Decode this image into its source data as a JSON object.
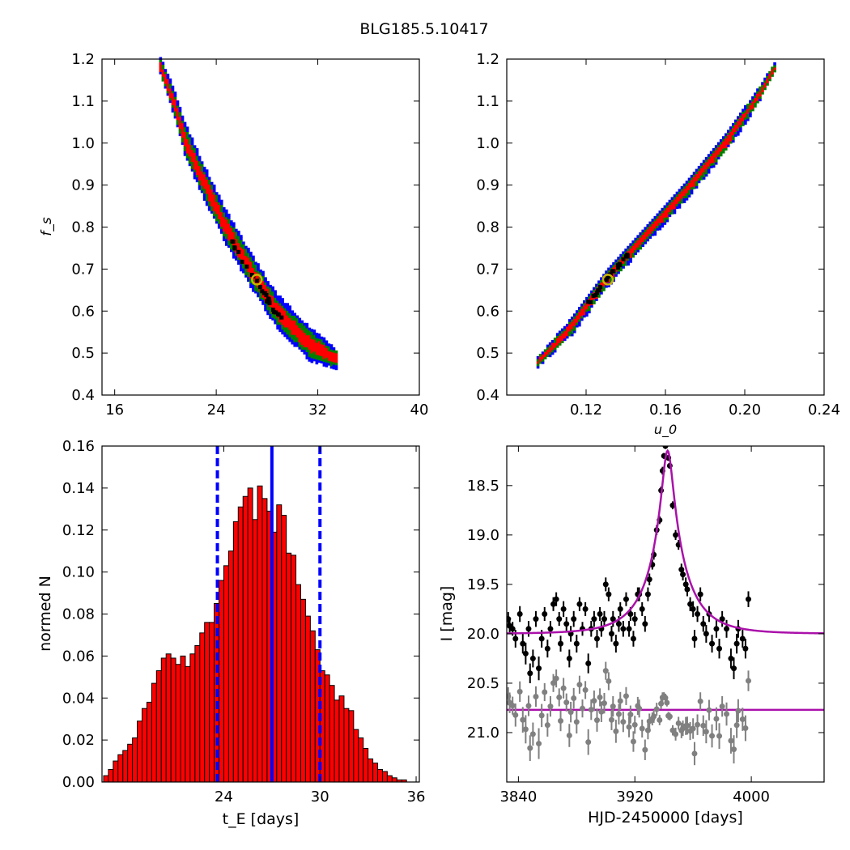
{
  "figure": {
    "title": "BLG185.5.10417"
  },
  "chart_data": [
    {
      "id": "fs-vs-te",
      "type": "heatmap",
      "xlabel": "",
      "ylabel": "f_s",
      "xlim": [
        15,
        40
      ],
      "ylim": [
        0.4,
        1.2
      ],
      "xticks": [
        16,
        24,
        32,
        40
      ],
      "yticks": [
        0.4,
        0.5,
        0.6,
        0.7,
        0.8,
        0.9,
        1.0,
        1.1,
        1.2
      ],
      "ytick_labels": [
        "0.4",
        "0.5",
        "0.6",
        "0.7",
        "0.8",
        "0.9",
        "1.0",
        "1.1",
        "1.2"
      ],
      "regions": [
        {
          "level": "outer",
          "color": "#0000ff"
        },
        {
          "level": "middle",
          "color": "#008000"
        },
        {
          "level": "inner",
          "color": "#ff0000"
        },
        {
          "level": "best",
          "color": "#000000"
        }
      ],
      "ridge": [
        [
          19.5,
          1.18
        ],
        [
          20.5,
          1.1
        ],
        [
          21.5,
          1.0
        ],
        [
          23,
          0.9
        ],
        [
          24.6,
          0.8
        ],
        [
          26.5,
          0.7
        ],
        [
          28.6,
          0.6
        ],
        [
          31.2,
          0.52
        ],
        [
          33.5,
          0.48
        ]
      ],
      "best_fit": {
        "x": 27.2,
        "y": 0.675,
        "color": "#c8b400"
      }
    },
    {
      "id": "fs-vs-u0",
      "type": "heatmap",
      "xlabel": "u_0",
      "ylabel": "",
      "xlim": [
        0.08,
        0.24
      ],
      "ylim": [
        0.4,
        1.2
      ],
      "xticks": [
        0.12,
        0.16,
        0.2,
        0.24
      ],
      "xtick_labels": [
        "0.12",
        "0.16",
        "0.20",
        "0.24"
      ],
      "yticks": [
        0.4,
        0.5,
        0.6,
        0.7,
        0.8,
        0.9,
        1.0,
        1.1,
        1.2
      ],
      "ytick_labels": [
        "0.4",
        "0.5",
        "0.6",
        "0.7",
        "0.8",
        "0.9",
        "1.0",
        "1.1",
        "1.2"
      ],
      "regions": [
        {
          "level": "outer",
          "color": "#0000ff"
        },
        {
          "level": "middle",
          "color": "#008000"
        },
        {
          "level": "inner",
          "color": "#ff0000"
        },
        {
          "level": "best",
          "color": "#000000"
        }
      ],
      "ridge": [
        [
          0.095,
          0.475
        ],
        [
          0.112,
          0.56
        ],
        [
          0.13,
          0.675
        ],
        [
          0.15,
          0.78
        ],
        [
          0.17,
          0.885
        ],
        [
          0.19,
          1.0
        ],
        [
          0.205,
          1.1
        ],
        [
          0.215,
          1.18
        ]
      ],
      "best_fit": {
        "x": 0.131,
        "y": 0.675,
        "color": "#c8b400"
      }
    },
    {
      "id": "te-histogram",
      "type": "bar",
      "xlabel": "t_E [days]",
      "ylabel": "normed N",
      "xlim": [
        16.4,
        36.2
      ],
      "ylim": [
        0,
        0.16
      ],
      "xticks": [
        24,
        30,
        36
      ],
      "yticks": [
        0.0,
        0.02,
        0.04,
        0.06,
        0.08,
        0.1,
        0.12,
        0.14,
        0.16
      ],
      "ytick_labels": [
        "0.00",
        "0.02",
        "0.04",
        "0.06",
        "0.08",
        "0.10",
        "0.12",
        "0.14",
        "0.16"
      ],
      "bin_start": 16.5,
      "bin_width": 0.3,
      "values": [
        0.003,
        0.006,
        0.01,
        0.013,
        0.015,
        0.018,
        0.021,
        0.029,
        0.035,
        0.038,
        0.047,
        0.053,
        0.059,
        0.061,
        0.059,
        0.056,
        0.06,
        0.055,
        0.061,
        0.065,
        0.071,
        0.076,
        0.076,
        0.085,
        0.096,
        0.103,
        0.11,
        0.124,
        0.131,
        0.136,
        0.14,
        0.125,
        0.141,
        0.135,
        0.129,
        0.119,
        0.132,
        0.127,
        0.109,
        0.108,
        0.094,
        0.087,
        0.079,
        0.072,
        0.063,
        0.053,
        0.051,
        0.046,
        0.039,
        0.041,
        0.035,
        0.034,
        0.025,
        0.021,
        0.016,
        0.011,
        0.009,
        0.006,
        0.005,
        0.003,
        0.002,
        0.001,
        0.001
      ],
      "bar_color": "#ff0000",
      "median": 27.0,
      "lower": 23.6,
      "upper": 30.0,
      "line_color": "#0000ff"
    },
    {
      "id": "light-curve",
      "type": "scatter",
      "xlabel": "HJD-2450000 [days]",
      "ylabel": "I [mag]",
      "xlim": [
        3832,
        4050
      ],
      "ylim": [
        21.5,
        18.1
      ],
      "y_inverted": true,
      "xticks": [
        3840,
        3920,
        4000
      ],
      "yticks": [
        18.5,
        19.0,
        19.5,
        20.0,
        20.5,
        21.0
      ],
      "ytick_labels": [
        "18.5",
        "19.0",
        "19.5",
        "20.0",
        "20.5",
        "21.0"
      ],
      "model": {
        "t0": 3942.5,
        "tE": 27.2,
        "u0": 0.131,
        "fs": 0.675,
        "I_base": 20.0,
        "color": "#aa11aa"
      },
      "residual_baseline": {
        "I": 20.77,
        "color": "#aa11aa"
      },
      "data_color": "#000000",
      "residual_color": "#808080",
      "points": [
        [
          3833,
          19.85,
          0.07
        ],
        [
          3834,
          19.92,
          0.08
        ],
        [
          3836,
          19.95,
          0.07
        ],
        [
          3838,
          20.05,
          0.09
        ],
        [
          3841,
          19.8,
          0.08
        ],
        [
          3843,
          20.1,
          0.1
        ],
        [
          3845,
          20.2,
          0.11
        ],
        [
          3847,
          19.95,
          0.08
        ],
        [
          3848,
          20.4,
          0.1
        ],
        [
          3850,
          20.25,
          0.09
        ],
        [
          3852,
          19.85,
          0.08
        ],
        [
          3854,
          20.35,
          0.12
        ],
        [
          3856,
          20.05,
          0.09
        ],
        [
          3858,
          19.8,
          0.07
        ],
        [
          3860,
          20.15,
          0.09
        ],
        [
          3862,
          19.95,
          0.08
        ],
        [
          3864,
          19.7,
          0.07
        ],
        [
          3866,
          19.65,
          0.07
        ],
        [
          3868,
          19.85,
          0.07
        ],
        [
          3869,
          20.1,
          0.08
        ],
        [
          3871,
          19.75,
          0.08
        ],
        [
          3873,
          19.9,
          0.07
        ],
        [
          3875,
          20.25,
          0.09
        ],
        [
          3876,
          20.0,
          0.08
        ],
        [
          3878,
          19.85,
          0.08
        ],
        [
          3880,
          20.1,
          0.09
        ],
        [
          3882,
          19.7,
          0.07
        ],
        [
          3884,
          19.95,
          0.07
        ],
        [
          3886,
          19.75,
          0.07
        ],
        [
          3888,
          20.3,
          0.1
        ],
        [
          3890,
          19.95,
          0.08
        ],
        [
          3892,
          19.85,
          0.08
        ],
        [
          3894,
          20.05,
          0.09
        ],
        [
          3896,
          19.8,
          0.07
        ],
        [
          3897,
          19.95,
          0.08
        ],
        [
          3899,
          19.85,
          0.08
        ],
        [
          3900,
          19.5,
          0.07
        ],
        [
          3902,
          19.6,
          0.07
        ],
        [
          3904,
          20.0,
          0.08
        ],
        [
          3905,
          19.85,
          0.08
        ],
        [
          3907,
          20.1,
          0.09
        ],
        [
          3909,
          19.9,
          0.08
        ],
        [
          3910,
          19.75,
          0.07
        ],
        [
          3912,
          19.95,
          0.08
        ],
        [
          3914,
          19.65,
          0.07
        ],
        [
          3916,
          19.95,
          0.08
        ],
        [
          3917,
          19.8,
          0.07
        ],
        [
          3919,
          20.05,
          0.08
        ],
        [
          3920,
          19.85,
          0.07
        ],
        [
          3922,
          19.6,
          0.07
        ],
        [
          3923,
          19.6,
          0.07
        ],
        [
          3925,
          19.75,
          0.07
        ],
        [
          3927,
          19.9,
          0.08
        ],
        [
          3929,
          19.6,
          0.07
        ],
        [
          3930,
          19.45,
          0.06
        ],
        [
          3932,
          19.3,
          0.05
        ],
        [
          3933,
          19.2,
          0.05
        ],
        [
          3935,
          18.95,
          0.05
        ],
        [
          3937,
          18.85,
          0.04
        ],
        [
          3938,
          18.55,
          0.04
        ],
        [
          3939,
          18.35,
          0.04
        ],
        [
          3940,
          18.2,
          0.03
        ],
        [
          3941,
          18.1,
          0.03
        ],
        [
          3942,
          18.08,
          0.03
        ],
        [
          3943,
          18.22,
          0.03
        ],
        [
          3944,
          18.3,
          0.03
        ],
        [
          3946,
          18.7,
          0.04
        ],
        [
          3948,
          19.0,
          0.05
        ],
        [
          3950,
          19.1,
          0.05
        ],
        [
          3952,
          19.35,
          0.06
        ],
        [
          3953,
          19.4,
          0.06
        ],
        [
          3955,
          19.5,
          0.07
        ],
        [
          3956,
          19.55,
          0.07
        ],
        [
          3958,
          19.7,
          0.07
        ],
        [
          3960,
          19.75,
          0.08
        ],
        [
          3961,
          20.05,
          0.09
        ],
        [
          3963,
          19.8,
          0.08
        ],
        [
          3965,
          19.6,
          0.07
        ],
        [
          3967,
          19.9,
          0.08
        ],
        [
          3969,
          20.0,
          0.09
        ],
        [
          3971,
          19.8,
          0.08
        ],
        [
          3973,
          20.1,
          0.09
        ],
        [
          3976,
          19.95,
          0.09
        ],
        [
          3978,
          20.15,
          0.1
        ],
        [
          3980,
          19.85,
          0.08
        ],
        [
          3983,
          19.95,
          0.09
        ],
        [
          3986,
          20.25,
          0.1
        ],
        [
          3988,
          20.35,
          0.11
        ],
        [
          3990,
          20.1,
          0.1
        ],
        [
          3991,
          19.95,
          0.09
        ],
        [
          3994,
          20.05,
          0.09
        ],
        [
          3996,
          20.15,
          0.1
        ],
        [
          3998,
          19.65,
          0.08
        ]
      ]
    }
  ]
}
